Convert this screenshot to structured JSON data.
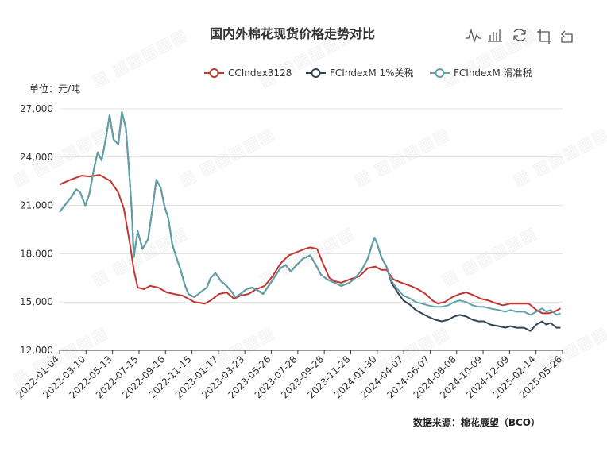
{
  "page": {
    "title": "国内外棉花现货价格走势对比",
    "unit_label": "单位：元/吨",
    "source_label": "数据来源：棉花展望（BCO）"
  },
  "toolbox": [
    {
      "name": "line-chart-icon"
    },
    {
      "name": "bar-chart-icon"
    },
    {
      "name": "restore-icon"
    },
    {
      "name": "crop-icon"
    },
    {
      "name": "undo-icon"
    }
  ],
  "colors": {
    "CCIndex3128": "#c23531",
    "FCIndexM_1pct": "#2f4554",
    "FCIndexM_sliding": "#61a0a8"
  },
  "chart_data": {
    "type": "line",
    "title": "国内外棉花现货价格走势对比",
    "ylabel": "单位：元/吨",
    "ylim": [
      12000,
      27000
    ],
    "yticks": [
      12000,
      15000,
      18000,
      21000,
      24000,
      27000
    ],
    "ytick_labels": [
      "12,000",
      "15,000",
      "18,000",
      "21,000",
      "24,000",
      "27,000"
    ],
    "x_tick_labels": [
      "2022-01-04",
      "2022-03-10",
      "2022-05-13",
      "2022-07-15",
      "2022-09-16",
      "2022-11-15",
      "2023-01-17",
      "2023-03-23",
      "2023-05-26",
      "2023-07-28",
      "2023-09-28",
      "2023-11-28",
      "2024-01-30",
      "2024-04-07",
      "2024-06-07",
      "2024-08-08",
      "2024-10-09",
      "2024-12-09",
      "2025-02-14",
      "2025-05-26"
    ],
    "grid": true,
    "legend_position": "top-right",
    "series": [
      {
        "name": "CCIndex3128",
        "color": "#c23531",
        "points": [
          [
            "2022-01-04",
            22300
          ],
          [
            "2022-02-01",
            22600
          ],
          [
            "2022-03-01",
            22850
          ],
          [
            "2022-03-20",
            22800
          ],
          [
            "2022-04-15",
            22900
          ],
          [
            "2022-05-13",
            22500
          ],
          [
            "2022-06-01",
            21800
          ],
          [
            "2022-06-15",
            20800
          ],
          [
            "2022-07-01",
            18500
          ],
          [
            "2022-07-10",
            17000
          ],
          [
            "2022-07-20",
            15900
          ],
          [
            "2022-08-05",
            15800
          ],
          [
            "2022-08-20",
            16000
          ],
          [
            "2022-09-10",
            15900
          ],
          [
            "2022-10-01",
            15600
          ],
          [
            "2022-10-20",
            15500
          ],
          [
            "2022-11-10",
            15400
          ],
          [
            "2022-11-25",
            15200
          ],
          [
            "2022-12-10",
            15000
          ],
          [
            "2023-01-05",
            14900
          ],
          [
            "2023-01-20",
            15100
          ],
          [
            "2023-02-10",
            15500
          ],
          [
            "2023-03-01",
            15600
          ],
          [
            "2023-03-20",
            15200
          ],
          [
            "2023-04-05",
            15400
          ],
          [
            "2023-04-25",
            15500
          ],
          [
            "2023-05-15",
            15800
          ],
          [
            "2023-06-05",
            16000
          ],
          [
            "2023-06-25",
            16600
          ],
          [
            "2023-07-15",
            17400
          ],
          [
            "2023-08-05",
            17900
          ],
          [
            "2023-08-25",
            18100
          ],
          [
            "2023-09-15",
            18300
          ],
          [
            "2023-09-28",
            18400
          ],
          [
            "2023-10-15",
            18300
          ],
          [
            "2023-10-30",
            17400
          ],
          [
            "2023-11-15",
            16500
          ],
          [
            "2023-11-28",
            16300
          ],
          [
            "2023-12-15",
            16200
          ],
          [
            "2024-01-05",
            16400
          ],
          [
            "2024-01-30",
            16600
          ],
          [
            "2024-02-20",
            17100
          ],
          [
            "2024-03-10",
            17200
          ],
          [
            "2024-03-25",
            17000
          ],
          [
            "2024-04-07",
            17000
          ],
          [
            "2024-04-25",
            16400
          ],
          [
            "2024-05-15",
            16200
          ],
          [
            "2024-06-07",
            16000
          ],
          [
            "2024-06-25",
            15800
          ],
          [
            "2024-07-15",
            15500
          ],
          [
            "2024-08-01",
            15100
          ],
          [
            "2024-08-15",
            14900
          ],
          [
            "2024-09-01",
            15000
          ],
          [
            "2024-09-20",
            15300
          ],
          [
            "2024-10-09",
            15500
          ],
          [
            "2024-10-25",
            15600
          ],
          [
            "2024-11-15",
            15400
          ],
          [
            "2024-12-01",
            15200
          ],
          [
            "2024-12-20",
            15100
          ],
          [
            "2025-01-10",
            14900
          ],
          [
            "2025-01-25",
            14800
          ],
          [
            "2025-02-14",
            14900
          ],
          [
            "2025-03-10",
            14900
          ],
          [
            "2025-04-01",
            14900
          ],
          [
            "2025-04-20",
            14500
          ],
          [
            "2025-05-05",
            14300
          ],
          [
            "2025-05-20",
            14300
          ],
          [
            "2025-06-05",
            14400
          ],
          [
            "2025-06-20",
            14600
          ]
        ]
      },
      {
        "name": "FCIndexM 1%关税",
        "color": "#2f4554",
        "points": [
          [
            "2022-01-04",
            20600
          ],
          [
            "2022-01-20",
            21100
          ],
          [
            "2022-02-05",
            21600
          ],
          [
            "2022-02-15",
            22000
          ],
          [
            "2022-02-25",
            21800
          ],
          [
            "2022-03-10",
            21000
          ],
          [
            "2022-03-20",
            21700
          ],
          [
            "2022-04-01",
            23300
          ],
          [
            "2022-04-10",
            24300
          ],
          [
            "2022-04-20",
            23800
          ],
          [
            "2022-05-01",
            25200
          ],
          [
            "2022-05-10",
            26600
          ],
          [
            "2022-05-20",
            25100
          ],
          [
            "2022-06-01",
            24800
          ],
          [
            "2022-06-10",
            26800
          ],
          [
            "2022-06-20",
            25800
          ],
          [
            "2022-06-28",
            23200
          ],
          [
            "2022-07-05",
            20600
          ],
          [
            "2022-07-10",
            17800
          ],
          [
            "2022-07-20",
            19400
          ],
          [
            "2022-08-01",
            18300
          ],
          [
            "2022-08-15",
            18900
          ],
          [
            "2022-08-25",
            20600
          ],
          [
            "2022-09-05",
            22600
          ],
          [
            "2022-09-16",
            22100
          ],
          [
            "2022-09-25",
            21000
          ],
          [
            "2022-10-05",
            20200
          ],
          [
            "2022-10-15",
            18600
          ],
          [
            "2022-10-25",
            17800
          ],
          [
            "2022-11-05",
            17000
          ],
          [
            "2022-11-15",
            16100
          ],
          [
            "2022-11-25",
            15500
          ],
          [
            "2022-12-10",
            15300
          ],
          [
            "2022-12-25",
            15600
          ],
          [
            "2023-01-10",
            15900
          ],
          [
            "2023-01-20",
            16500
          ],
          [
            "2023-02-01",
            16800
          ],
          [
            "2023-02-15",
            16300
          ],
          [
            "2023-03-01",
            16000
          ],
          [
            "2023-03-15",
            15600
          ],
          [
            "2023-03-23",
            15300
          ],
          [
            "2023-04-05",
            15500
          ],
          [
            "2023-04-20",
            15800
          ],
          [
            "2023-05-05",
            15900
          ],
          [
            "2023-05-20",
            15700
          ],
          [
            "2023-06-01",
            15500
          ],
          [
            "2023-06-15",
            16000
          ],
          [
            "2023-07-01",
            16600
          ],
          [
            "2023-07-15",
            17100
          ],
          [
            "2023-07-28",
            17300
          ],
          [
            "2023-08-10",
            16900
          ],
          [
            "2023-08-25",
            17300
          ],
          [
            "2023-09-10",
            17700
          ],
          [
            "2023-09-28",
            17900
          ],
          [
            "2023-10-10",
            17400
          ],
          [
            "2023-10-25",
            16700
          ],
          [
            "2023-11-10",
            16400
          ],
          [
            "2023-11-28",
            16200
          ],
          [
            "2023-12-15",
            16000
          ],
          [
            "2024-01-05",
            16200
          ],
          [
            "2024-01-20",
            16500
          ],
          [
            "2024-02-05",
            17000
          ],
          [
            "2024-02-20",
            17700
          ],
          [
            "2024-03-01",
            18500
          ],
          [
            "2024-03-08",
            19000
          ],
          [
            "2024-03-15",
            18600
          ],
          [
            "2024-03-25",
            17800
          ],
          [
            "2024-04-07",
            17200
          ],
          [
            "2024-04-20",
            16200
          ],
          [
            "2024-05-05",
            15600
          ],
          [
            "2024-05-20",
            15100
          ],
          [
            "2024-06-07",
            14800
          ],
          [
            "2024-06-20",
            14500
          ],
          [
            "2024-07-05",
            14300
          ],
          [
            "2024-07-20",
            14100
          ],
          [
            "2024-08-08",
            13900
          ],
          [
            "2024-08-25",
            13800
          ],
          [
            "2024-09-10",
            13900
          ],
          [
            "2024-09-25",
            14100
          ],
          [
            "2024-10-09",
            14200
          ],
          [
            "2024-10-25",
            14100
          ],
          [
            "2024-11-10",
            13900
          ],
          [
            "2024-11-25",
            13800
          ],
          [
            "2024-12-09",
            13800
          ],
          [
            "2024-12-25",
            13600
          ],
          [
            "2025-01-15",
            13500
          ],
          [
            "2025-02-01",
            13400
          ],
          [
            "2025-02-14",
            13500
          ],
          [
            "2025-03-01",
            13400
          ],
          [
            "2025-03-20",
            13400
          ],
          [
            "2025-04-05",
            13200
          ],
          [
            "2025-04-20",
            13600
          ],
          [
            "2025-05-05",
            13800
          ],
          [
            "2025-05-15",
            13600
          ],
          [
            "2025-05-26",
            13700
          ],
          [
            "2025-06-10",
            13400
          ],
          [
            "2025-06-20",
            13400
          ]
        ]
      },
      {
        "name": "FCIndexM 滑准税",
        "color": "#61a0a8",
        "points": [
          [
            "2022-01-04",
            20600
          ],
          [
            "2022-01-20",
            21100
          ],
          [
            "2022-02-05",
            21600
          ],
          [
            "2022-02-15",
            22000
          ],
          [
            "2022-02-25",
            21800
          ],
          [
            "2022-03-10",
            21000
          ],
          [
            "2022-03-20",
            21700
          ],
          [
            "2022-04-01",
            23300
          ],
          [
            "2022-04-10",
            24300
          ],
          [
            "2022-04-20",
            23800
          ],
          [
            "2022-05-01",
            25200
          ],
          [
            "2022-05-10",
            26600
          ],
          [
            "2022-05-20",
            25100
          ],
          [
            "2022-06-01",
            24800
          ],
          [
            "2022-06-10",
            26800
          ],
          [
            "2022-06-20",
            25800
          ],
          [
            "2022-06-28",
            23200
          ],
          [
            "2022-07-05",
            20600
          ],
          [
            "2022-07-10",
            17800
          ],
          [
            "2022-07-20",
            19400
          ],
          [
            "2022-08-01",
            18300
          ],
          [
            "2022-08-15",
            18900
          ],
          [
            "2022-08-25",
            20600
          ],
          [
            "2022-09-05",
            22600
          ],
          [
            "2022-09-16",
            22100
          ],
          [
            "2022-09-25",
            21000
          ],
          [
            "2022-10-05",
            20200
          ],
          [
            "2022-10-15",
            18600
          ],
          [
            "2022-10-25",
            17800
          ],
          [
            "2022-11-05",
            17000
          ],
          [
            "2022-11-15",
            16100
          ],
          [
            "2022-11-25",
            15500
          ],
          [
            "2022-12-10",
            15300
          ],
          [
            "2022-12-25",
            15600
          ],
          [
            "2023-01-10",
            15900
          ],
          [
            "2023-01-20",
            16500
          ],
          [
            "2023-02-01",
            16800
          ],
          [
            "2023-02-15",
            16300
          ],
          [
            "2023-03-01",
            16000
          ],
          [
            "2023-03-15",
            15600
          ],
          [
            "2023-03-23",
            15300
          ],
          [
            "2023-04-05",
            15500
          ],
          [
            "2023-04-20",
            15800
          ],
          [
            "2023-05-05",
            15900
          ],
          [
            "2023-05-20",
            15700
          ],
          [
            "2023-06-01",
            15500
          ],
          [
            "2023-06-15",
            16000
          ],
          [
            "2023-07-01",
            16600
          ],
          [
            "2023-07-15",
            17100
          ],
          [
            "2023-07-28",
            17300
          ],
          [
            "2023-08-10",
            16900
          ],
          [
            "2023-08-25",
            17300
          ],
          [
            "2023-09-10",
            17700
          ],
          [
            "2023-09-28",
            17900
          ],
          [
            "2023-10-10",
            17400
          ],
          [
            "2023-10-25",
            16700
          ],
          [
            "2023-11-10",
            16400
          ],
          [
            "2023-11-28",
            16200
          ],
          [
            "2023-12-15",
            16000
          ],
          [
            "2024-01-05",
            16200
          ],
          [
            "2024-01-20",
            16500
          ],
          [
            "2024-02-05",
            17000
          ],
          [
            "2024-02-20",
            17700
          ],
          [
            "2024-03-01",
            18500
          ],
          [
            "2024-03-08",
            19000
          ],
          [
            "2024-03-15",
            18600
          ],
          [
            "2024-03-25",
            17800
          ],
          [
            "2024-04-07",
            17200
          ],
          [
            "2024-04-20",
            16300
          ],
          [
            "2024-05-05",
            15800
          ],
          [
            "2024-05-20",
            15400
          ],
          [
            "2024-06-07",
            15200
          ],
          [
            "2024-06-20",
            15000
          ],
          [
            "2024-07-05",
            14900
          ],
          [
            "2024-07-20",
            14800
          ],
          [
            "2024-08-08",
            14700
          ],
          [
            "2024-08-25",
            14700
          ],
          [
            "2024-09-10",
            14800
          ],
          [
            "2024-09-25",
            15000
          ],
          [
            "2024-10-09",
            15100
          ],
          [
            "2024-10-25",
            15000
          ],
          [
            "2024-11-10",
            14800
          ],
          [
            "2024-11-25",
            14700
          ],
          [
            "2024-12-09",
            14700
          ],
          [
            "2024-12-25",
            14600
          ],
          [
            "2025-01-15",
            14500
          ],
          [
            "2025-02-01",
            14400
          ],
          [
            "2025-02-14",
            14500
          ],
          [
            "2025-03-01",
            14400
          ],
          [
            "2025-03-20",
            14400
          ],
          [
            "2025-04-05",
            14200
          ],
          [
            "2025-04-20",
            14400
          ],
          [
            "2025-05-05",
            14600
          ],
          [
            "2025-05-15",
            14400
          ],
          [
            "2025-05-26",
            14500
          ],
          [
            "2025-06-10",
            14200
          ],
          [
            "2025-06-20",
            14300
          ]
        ]
      }
    ]
  }
}
